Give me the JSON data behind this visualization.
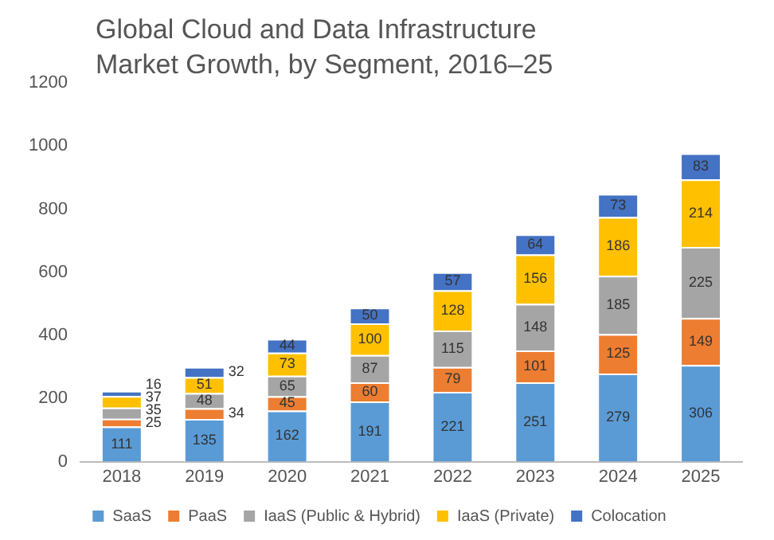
{
  "chart_data": {
    "type": "bar",
    "title": "Global Cloud and Data Infrastructure Market Growth, by Segment, 2016–25",
    "categories": [
      "2018",
      "2019",
      "2020",
      "2021",
      "2022",
      "2023",
      "2024",
      "2025"
    ],
    "stacked": true,
    "data_labels": true,
    "legend": "bottom",
    "grid": false,
    "ylim": [
      0,
      1200
    ],
    "yticks": [
      0,
      200,
      400,
      600,
      800,
      1000,
      1200
    ],
    "series": [
      {
        "name": "SaaS",
        "color": "#5b9bd5",
        "values": [
          111,
          135,
          162,
          191,
          221,
          251,
          279,
          306
        ]
      },
      {
        "name": "PaaS",
        "color": "#ed7d31",
        "values": [
          25,
          34,
          45,
          60,
          79,
          101,
          125,
          149
        ]
      },
      {
        "name": "IaaS (Public & Hybrid)",
        "color": "#a5a5a5",
        "values": [
          35,
          48,
          65,
          87,
          115,
          148,
          185,
          225
        ]
      },
      {
        "name": "IaaS (Private)",
        "color": "#ffc000",
        "values": [
          37,
          51,
          73,
          100,
          128,
          156,
          186,
          214
        ]
      },
      {
        "name": "Colocation",
        "color": "#4472c4",
        "values": [
          16,
          32,
          44,
          50,
          57,
          64,
          73,
          83
        ]
      }
    ]
  }
}
